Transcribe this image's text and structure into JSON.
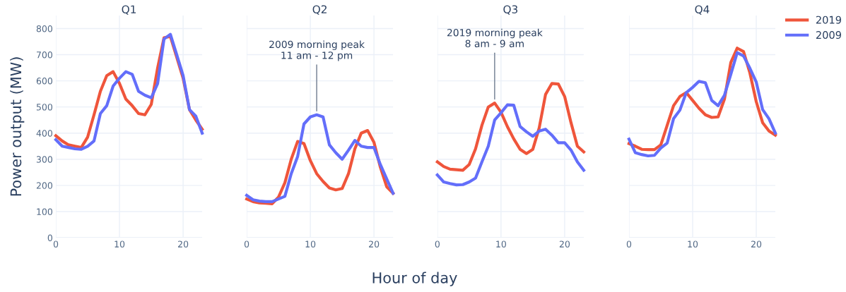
{
  "chart_data": [
    {
      "type": "line",
      "title": "Q1",
      "ylabel": "Power output (MW)",
      "x": [
        0,
        1,
        2,
        3,
        4,
        5,
        6,
        7,
        8,
        9,
        10,
        11,
        12,
        13,
        14,
        15,
        16,
        17,
        18,
        19,
        20,
        21,
        22,
        23
      ],
      "xlim": [
        0,
        23
      ],
      "xticks": [
        0,
        10,
        20
      ],
      "ylim": [
        0,
        850
      ],
      "yticks": [
        0,
        100,
        200,
        300,
        400,
        500,
        600,
        700,
        800
      ],
      "grid": true,
      "legend": "right",
      "series": [
        {
          "name": "2019",
          "color": "#ef553b",
          "values": [
            390,
            370,
            355,
            350,
            345,
            385,
            470,
            560,
            620,
            635,
            590,
            530,
            505,
            475,
            470,
            510,
            650,
            765,
            770,
            690,
            610,
            490,
            450,
            415
          ]
        },
        {
          "name": "2009",
          "color": "#636efa",
          "values": [
            375,
            350,
            345,
            340,
            338,
            350,
            370,
            475,
            505,
            580,
            610,
            635,
            625,
            560,
            545,
            535,
            590,
            760,
            778,
            700,
            620,
            490,
            465,
            400
          ]
        }
      ]
    },
    {
      "type": "line",
      "title": "Q2",
      "xlabel": "Hour of day",
      "x": [
        0,
        1,
        2,
        3,
        4,
        5,
        6,
        7,
        8,
        9,
        10,
        11,
        12,
        13,
        14,
        15,
        16,
        17,
        18,
        19,
        20,
        21,
        22,
        23
      ],
      "xlim": [
        0,
        23
      ],
      "xticks": [
        0,
        10,
        20
      ],
      "ylim": [
        0,
        850
      ],
      "yticks": [
        0,
        100,
        200,
        300,
        400,
        500,
        600,
        700,
        800
      ],
      "tick_labels": "x",
      "grid": true,
      "legend": false,
      "annotations": [
        {
          "text": "2009 morning peak\n11 am - 12 pm",
          "x": 11,
          "y": 470
        }
      ],
      "series": [
        {
          "name": "2019",
          "color": "#ef553b",
          "values": [
            148,
            138,
            133,
            132,
            130,
            155,
            210,
            300,
            368,
            360,
            295,
            245,
            215,
            190,
            183,
            188,
            245,
            340,
            400,
            410,
            365,
            270,
            195,
            170
          ]
        },
        {
          "name": "2009",
          "color": "#636efa",
          "values": [
            162,
            145,
            140,
            138,
            138,
            148,
            158,
            245,
            310,
            435,
            462,
            470,
            462,
            355,
            325,
            300,
            335,
            372,
            350,
            345,
            345,
            280,
            225,
            170
          ]
        }
      ]
    },
    {
      "type": "line",
      "title": "Q3",
      "x": [
        0,
        1,
        2,
        3,
        4,
        5,
        6,
        7,
        8,
        9,
        10,
        11,
        12,
        13,
        14,
        15,
        16,
        17,
        18,
        19,
        20,
        21,
        22,
        23
      ],
      "xlim": [
        0,
        23
      ],
      "xticks": [
        0,
        10,
        20
      ],
      "ylim": [
        0,
        850
      ],
      "yticks": [
        0,
        100,
        200,
        300,
        400,
        500,
        600,
        700,
        800
      ],
      "tick_labels": "x",
      "grid": true,
      "legend": false,
      "annotations": [
        {
          "text": "2019 morning peak\n8 am - 9 am",
          "x": 9,
          "y": 515
        }
      ],
      "series": [
        {
          "name": "2019",
          "color": "#ef553b",
          "values": [
            290,
            272,
            262,
            260,
            258,
            280,
            340,
            430,
            500,
            515,
            480,
            425,
            378,
            338,
            322,
            338,
            420,
            548,
            590,
            588,
            540,
            440,
            350,
            328
          ]
        },
        {
          "name": "2009",
          "color": "#636efa",
          "values": [
            240,
            213,
            207,
            202,
            203,
            213,
            228,
            290,
            350,
            450,
            478,
            508,
            507,
            425,
            405,
            388,
            408,
            415,
            392,
            363,
            363,
            335,
            290,
            258
          ]
        }
      ]
    },
    {
      "type": "line",
      "title": "Q4",
      "x": [
        0,
        1,
        2,
        3,
        4,
        5,
        6,
        7,
        8,
        9,
        10,
        11,
        12,
        13,
        14,
        15,
        16,
        17,
        18,
        19,
        20,
        21,
        22,
        23
      ],
      "xlim": [
        0,
        23
      ],
      "xticks": [
        0,
        10,
        20
      ],
      "ylim": [
        0,
        850
      ],
      "yticks": [
        0,
        100,
        200,
        300,
        400,
        500,
        600,
        700,
        800
      ],
      "tick_labels": "x",
      "grid": true,
      "legend": false,
      "series": [
        {
          "name": "2019",
          "color": "#ef553b",
          "values": [
            360,
            350,
            338,
            337,
            337,
            355,
            430,
            505,
            540,
            555,
            525,
            495,
            470,
            460,
            462,
            530,
            670,
            725,
            712,
            630,
            520,
            440,
            408,
            392
          ]
        },
        {
          "name": "2009",
          "color": "#636efa",
          "values": [
            377,
            325,
            318,
            313,
            315,
            343,
            362,
            455,
            488,
            555,
            575,
            598,
            593,
            525,
            505,
            545,
            625,
            708,
            695,
            648,
            595,
            490,
            455,
            400
          ]
        }
      ]
    }
  ]
}
